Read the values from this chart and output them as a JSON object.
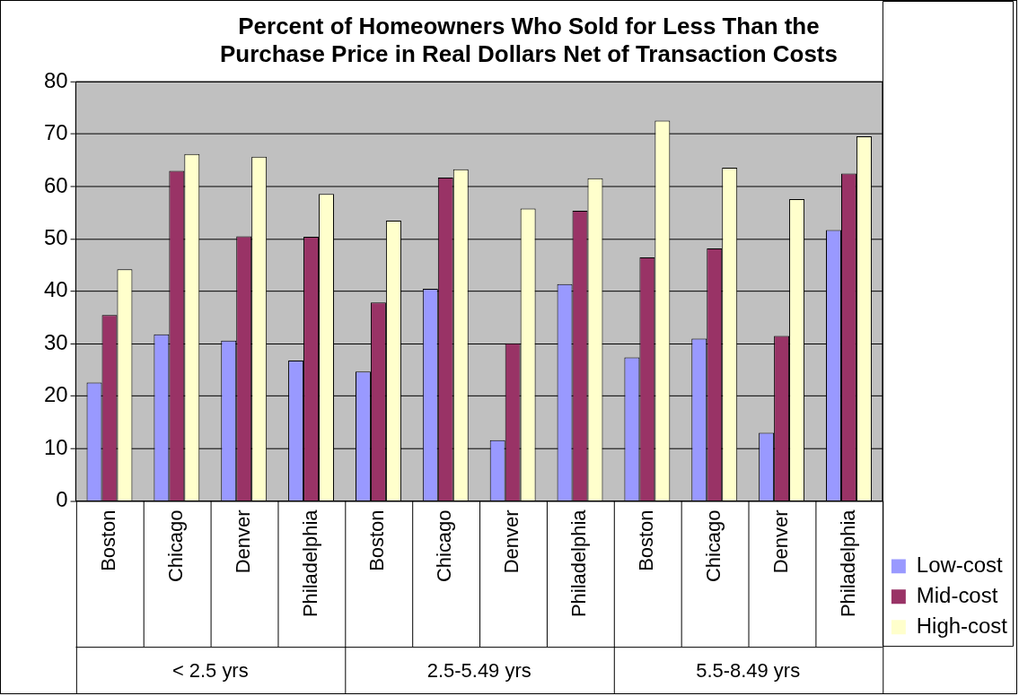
{
  "chart_data": {
    "type": "bar",
    "title": "Percent of Homeowners Who Sold for Less Than the Purchase Price in Real Dollars Net of Transaction Costs",
    "categories": [
      "Boston",
      "Chicago",
      "Denver",
      "Philadelphia",
      "Boston",
      "Chicago",
      "Denver",
      "Philadelphia",
      "Boston",
      "Chicago",
      "Denver",
      "Philadelphia"
    ],
    "annotations": [
      "< 2.5 yrs",
      "2.5-5.49 yrs",
      "5.5-8.49 yrs"
    ],
    "series": [
      {
        "name": "Low-cost",
        "color": "#9999ff",
        "values": [
          22.6,
          31.8,
          30.6,
          26.8,
          24.7,
          40.5,
          11.6,
          41.4,
          27.4,
          31.0,
          13.0,
          51.7
        ]
      },
      {
        "name": "Mid-cost",
        "color": "#993366",
        "values": [
          35.5,
          63.0,
          50.5,
          50.4,
          37.9,
          61.7,
          30.1,
          55.4,
          46.5,
          48.2,
          31.5,
          62.5
        ]
      },
      {
        "name": "High-cost",
        "color": "#ffffcc",
        "values": [
          44.2,
          66.2,
          65.7,
          58.6,
          53.5,
          63.3,
          55.8,
          61.6,
          72.6,
          63.6,
          57.6,
          69.6
        ]
      }
    ],
    "ylim": [
      0,
      80
    ],
    "yticks": [
      0,
      10,
      20,
      30,
      40,
      50,
      60,
      70,
      80
    ],
    "grid": "y",
    "legend": "bottom right"
  }
}
